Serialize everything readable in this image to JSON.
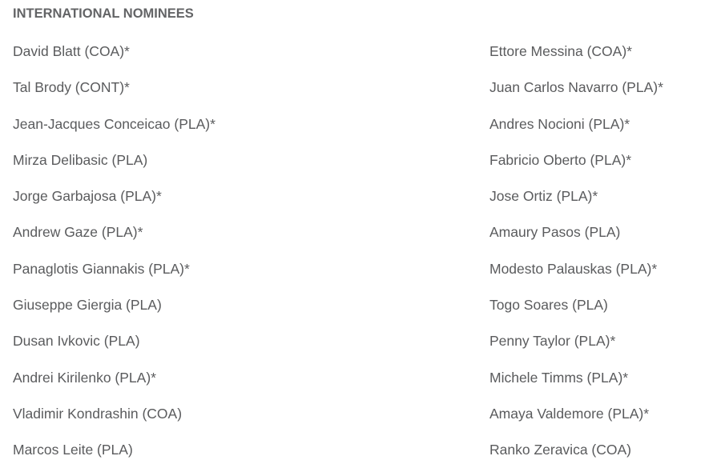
{
  "heading": "INTERNATIONAL NOMINEES",
  "left_column": [
    "David Blatt (COA)*",
    "Tal Brody (CONT)*",
    "Jean-Jacques Conceicao (PLA)*",
    "Mirza Delibasic (PLA)",
    "Jorge Garbajosa (PLA)*",
    "Andrew Gaze (PLA)*",
    "Panaglotis Giannakis (PLA)*",
    "Giuseppe Giergia (PLA)",
    "Dusan Ivkovic (PLA)",
    "Andrei Kirilenko (PLA)*",
    "Vladimir Kondrashin (COA)",
    "Marcos Leite (PLA)"
  ],
  "right_column": [
    "Ettore Messina (COA)*",
    "Juan Carlos Navarro (PLA)*",
    "Andres Nocioni (PLA)*",
    "Fabricio Oberto (PLA)*",
    "Jose Ortiz (PLA)*",
    "Amaury Pasos (PLA)",
    "Modesto Palauskas (PLA)*",
    "Togo Soares (PLA)",
    "Penny Taylor (PLA)*",
    "Michele Timms (PLA)*",
    "Amaya Valdemore (PLA)*",
    "Ranko Zeravica (COA)"
  ]
}
